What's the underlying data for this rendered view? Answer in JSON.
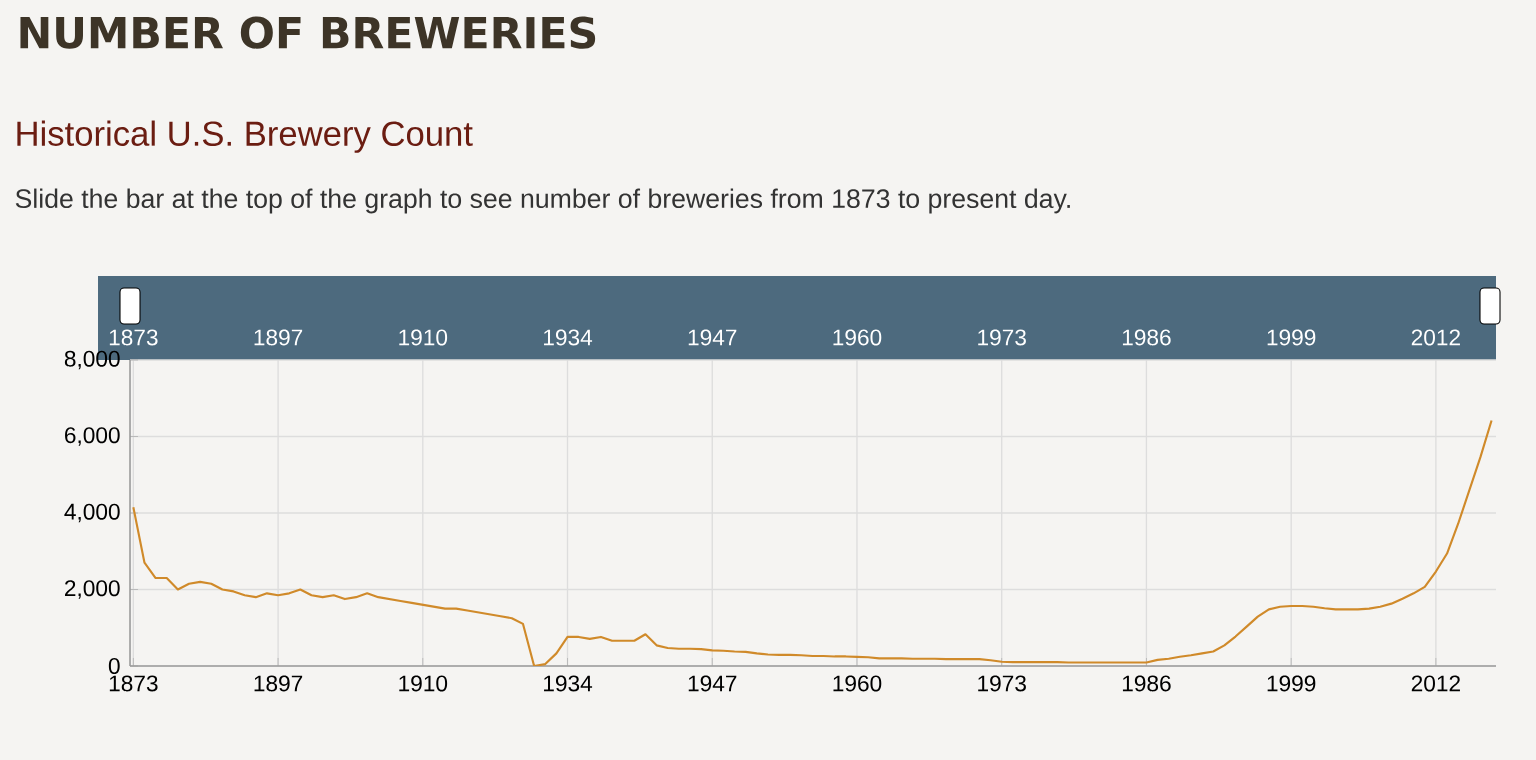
{
  "chart_data": {
    "type": "line",
    "title": "NUMBER OF BREWERIES",
    "subtitle": "Historical U.S. Brewery Count",
    "annotations": [
      "Slide the bar at the top of the graph to see number of breweries from 1873 to present day."
    ],
    "categories": [
      "1873",
      null,
      null,
      null,
      null,
      null,
      null,
      null,
      null,
      null,
      null,
      null,
      null,
      "1897",
      null,
      null,
      null,
      null,
      null,
      null,
      null,
      null,
      null,
      null,
      null,
      null,
      "1910",
      null,
      null,
      null,
      null,
      null,
      null,
      null,
      null,
      null,
      null,
      null,
      null,
      "1934",
      null,
      null,
      null,
      null,
      null,
      null,
      null,
      null,
      null,
      null,
      null,
      null,
      "1947",
      null,
      null,
      null,
      null,
      null,
      null,
      null,
      null,
      null,
      null,
      null,
      null,
      "1960",
      null,
      null,
      null,
      null,
      null,
      null,
      null,
      null,
      null,
      null,
      null,
      null,
      "1973",
      null,
      null,
      null,
      null,
      null,
      null,
      null,
      null,
      null,
      null,
      null,
      null,
      "1986",
      null,
      null,
      null,
      null,
      null,
      null,
      null,
      null,
      null,
      null,
      null,
      null,
      "1999",
      null,
      null,
      null,
      null,
      null,
      null,
      null,
      null,
      null,
      null,
      null,
      null,
      "2012",
      null,
      null,
      null,
      null,
      null
    ],
    "series": [
      {
        "color": "#d08a2a",
        "values": [
          4150,
          2700,
          2300,
          2300,
          2000,
          2150,
          2200,
          2150,
          2000,
          1950,
          1850,
          1800,
          1900,
          1850,
          1900,
          2000,
          1850,
          1800,
          1850,
          1750,
          1800,
          1900,
          1800,
          1750,
          1700,
          1650,
          1600,
          1550,
          1500,
          1500,
          1450,
          1400,
          1350,
          1300,
          1250,
          1100,
          0,
          50,
          330,
          760,
          760,
          710,
          760,
          660,
          660,
          660,
          830,
          540,
          470,
          450,
          450,
          440,
          410,
          400,
          380,
          370,
          330,
          300,
          290,
          290,
          280,
          260,
          260,
          250,
          250,
          240,
          230,
          200,
          200,
          200,
          190,
          190,
          190,
          180,
          180,
          180,
          180,
          150,
          110,
          100,
          100,
          100,
          100,
          100,
          90,
          90,
          90,
          90,
          90,
          90,
          90,
          90,
          160,
          190,
          240,
          280,
          330,
          380,
          540,
          770,
          1030,
          1290,
          1480,
          1550,
          1570,
          1570,
          1550,
          1510,
          1480,
          1480,
          1480,
          1500,
          1550,
          1630,
          1760,
          1900,
          2070,
          2470,
          2940,
          3720,
          4590,
          5460,
          6420
        ]
      }
    ],
    "ylim": [
      0,
      8000
    ],
    "yticks": [
      0,
      {
        "value": 2000,
        "label": "2,000"
      },
      {
        "value": 4000,
        "label": "4,000"
      },
      {
        "value": 6000,
        "label": "6,000"
      },
      {
        "value": 8000,
        "label": "8,000"
      }
    ],
    "grid": true
  }
}
